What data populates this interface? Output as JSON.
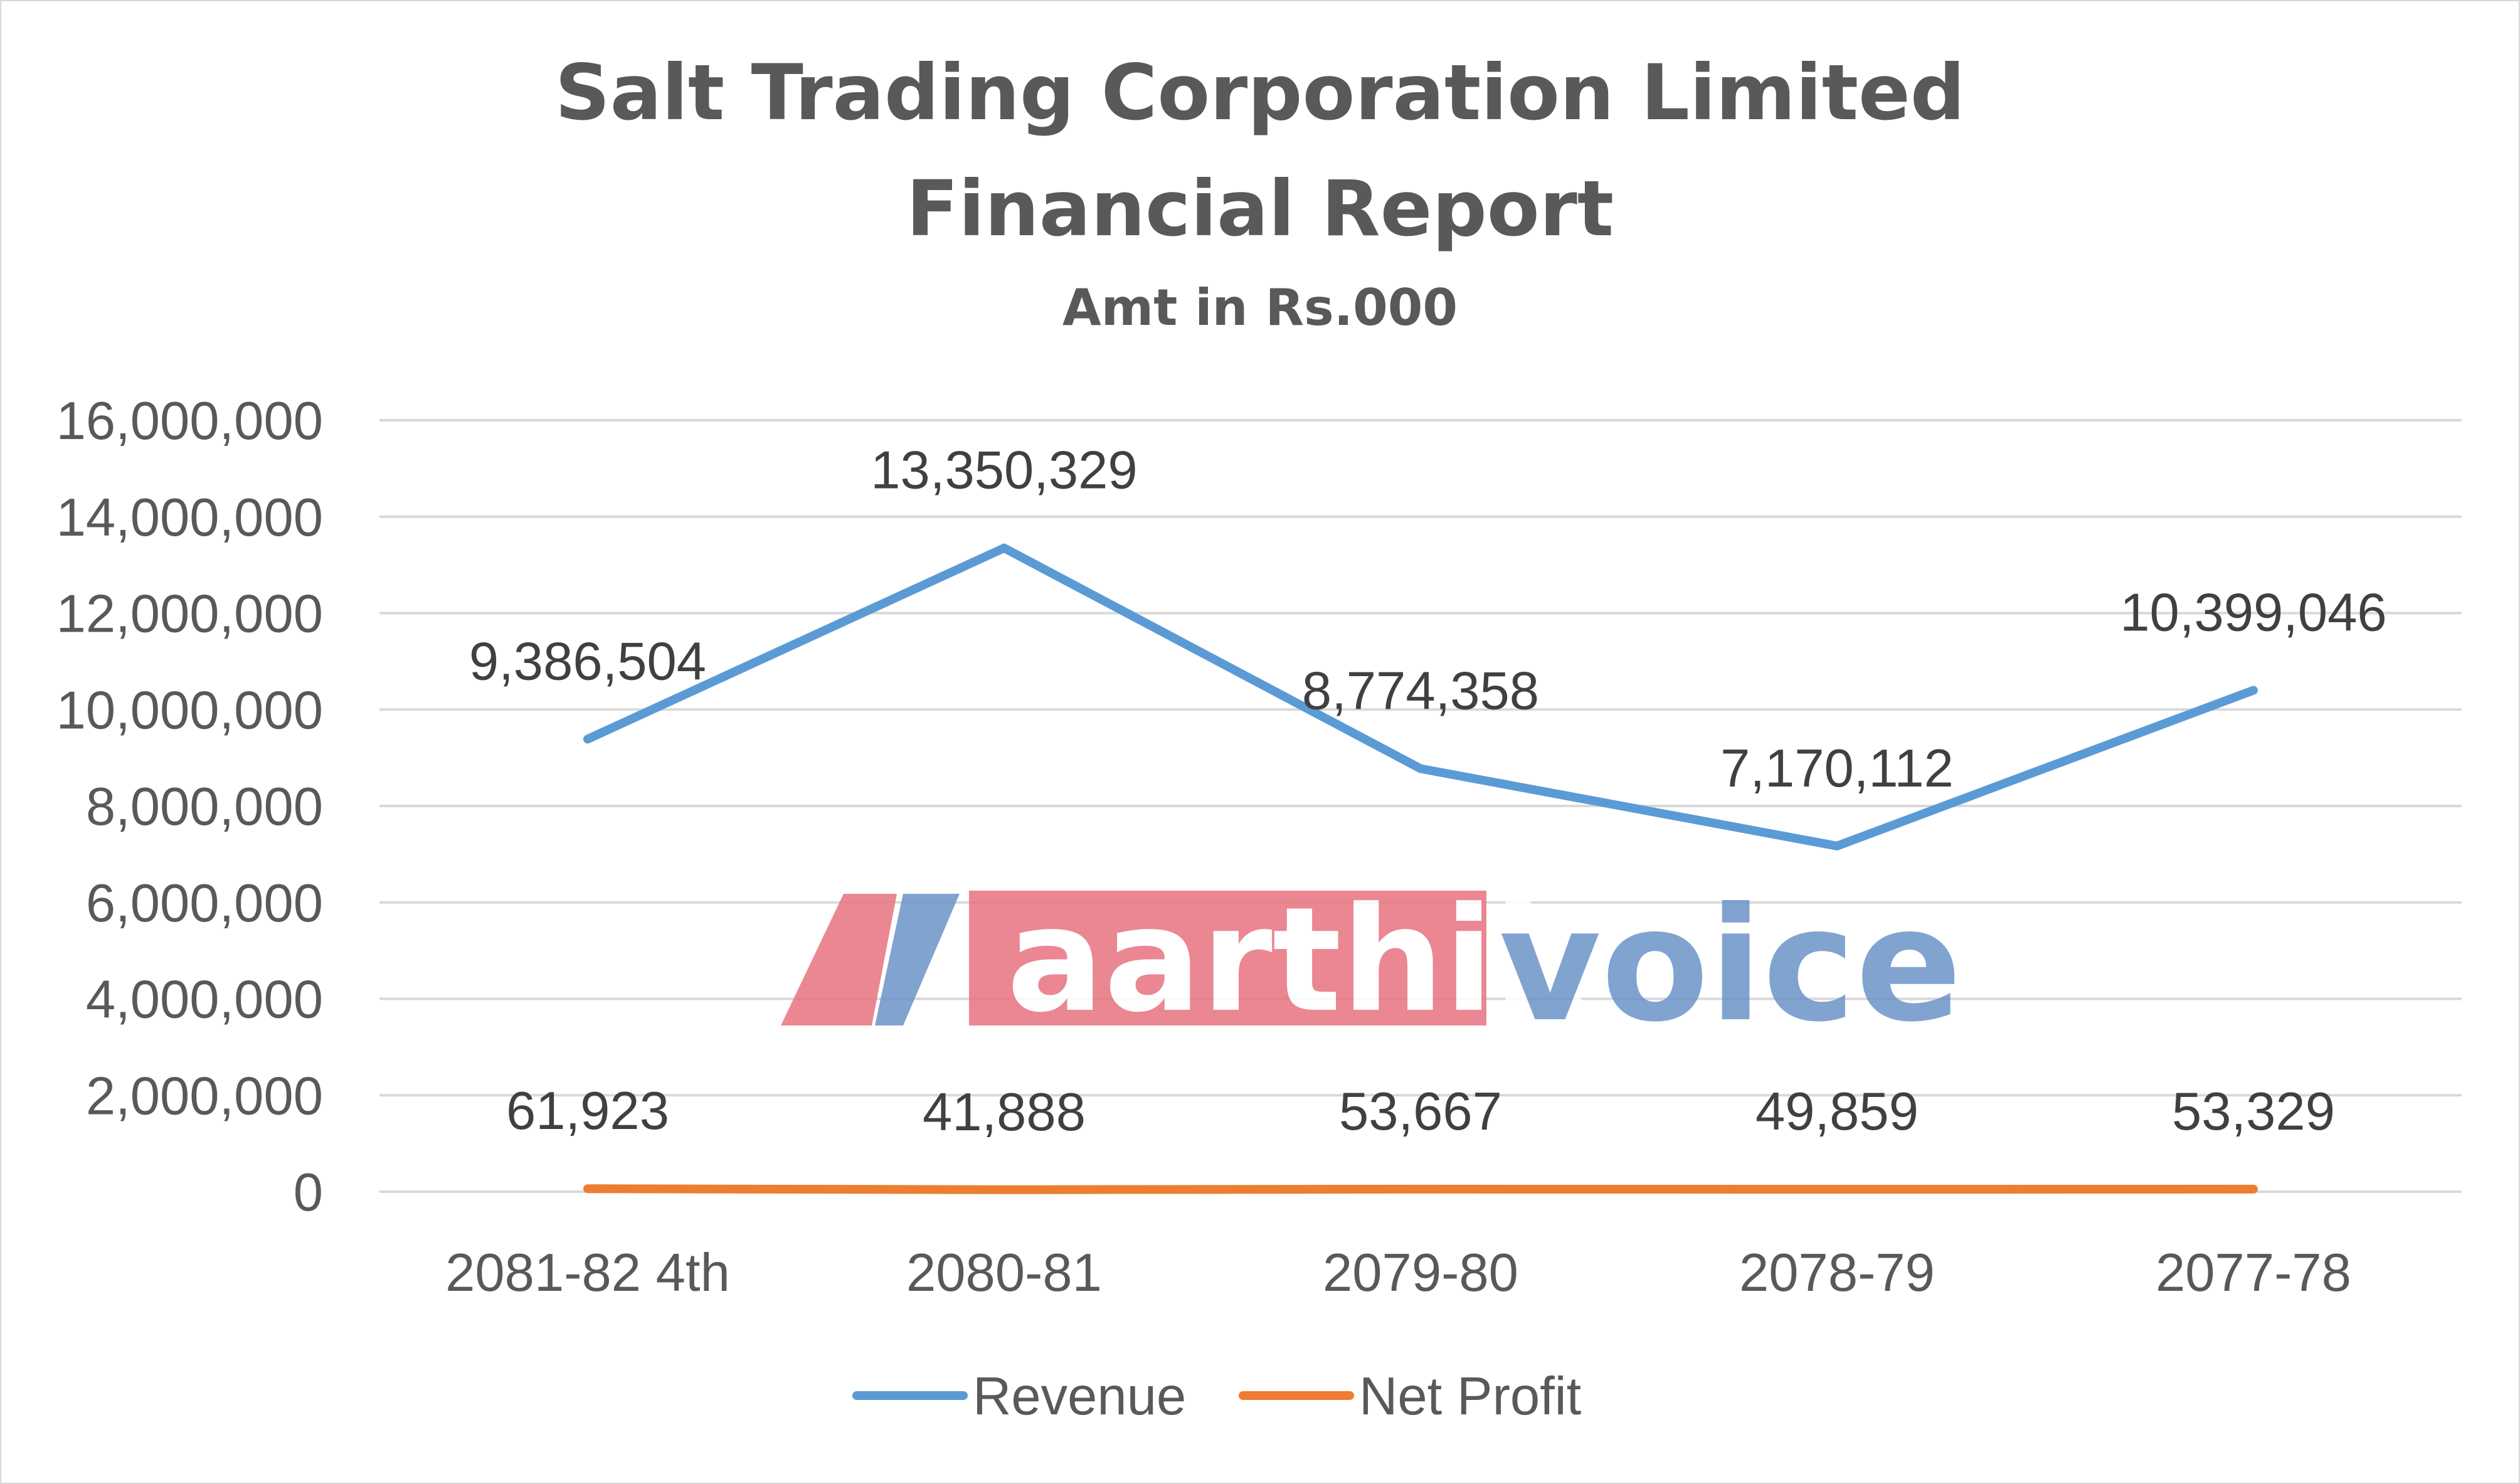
{
  "chart_data": {
    "type": "line",
    "title": "Salt Trading Corporation Limited",
    "title_line2": "Financial Report",
    "subtitle": "Amt in Rs.000",
    "categories": [
      "2081-82 4th",
      "2080-81",
      "2079-80",
      "2078-79",
      "2077-78"
    ],
    "series": [
      {
        "name": "Revenue",
        "values": [
          9386504,
          13350329,
          8774358,
          7170112,
          10399046
        ],
        "labels": [
          "9,386,504",
          "13,350,329",
          "8,774,358",
          "7,170,112",
          "10,399,046"
        ],
        "color": "#5B9BD5"
      },
      {
        "name": "Net Profit",
        "values": [
          61923,
          41888,
          53667,
          49859,
          53329
        ],
        "labels": [
          "61,923",
          "41,888",
          "53,667",
          "49,859",
          "53,329"
        ],
        "color": "#ED7D31"
      }
    ],
    "ylim": [
      0,
      16000000
    ],
    "yticks": [
      0,
      2000000,
      4000000,
      6000000,
      8000000,
      10000000,
      12000000,
      14000000,
      16000000
    ],
    "ytick_labels": [
      "0",
      "2,000,000",
      "4,000,000",
      "6,000,000",
      "8,000,000",
      "10,000,000",
      "12,000,000",
      "14,000,000",
      "16,000,000"
    ],
    "grid": true,
    "legend": "bottom",
    "xlabel": "",
    "ylabel": ""
  },
  "watermark": {
    "logo_text": "aarthik",
    "logo_text2": "voice",
    "logo_red": "#E8737F",
    "logo_blue": "#6C93C8"
  },
  "colors": {
    "grid": "#D9D9D9",
    "text": "#595959"
  }
}
